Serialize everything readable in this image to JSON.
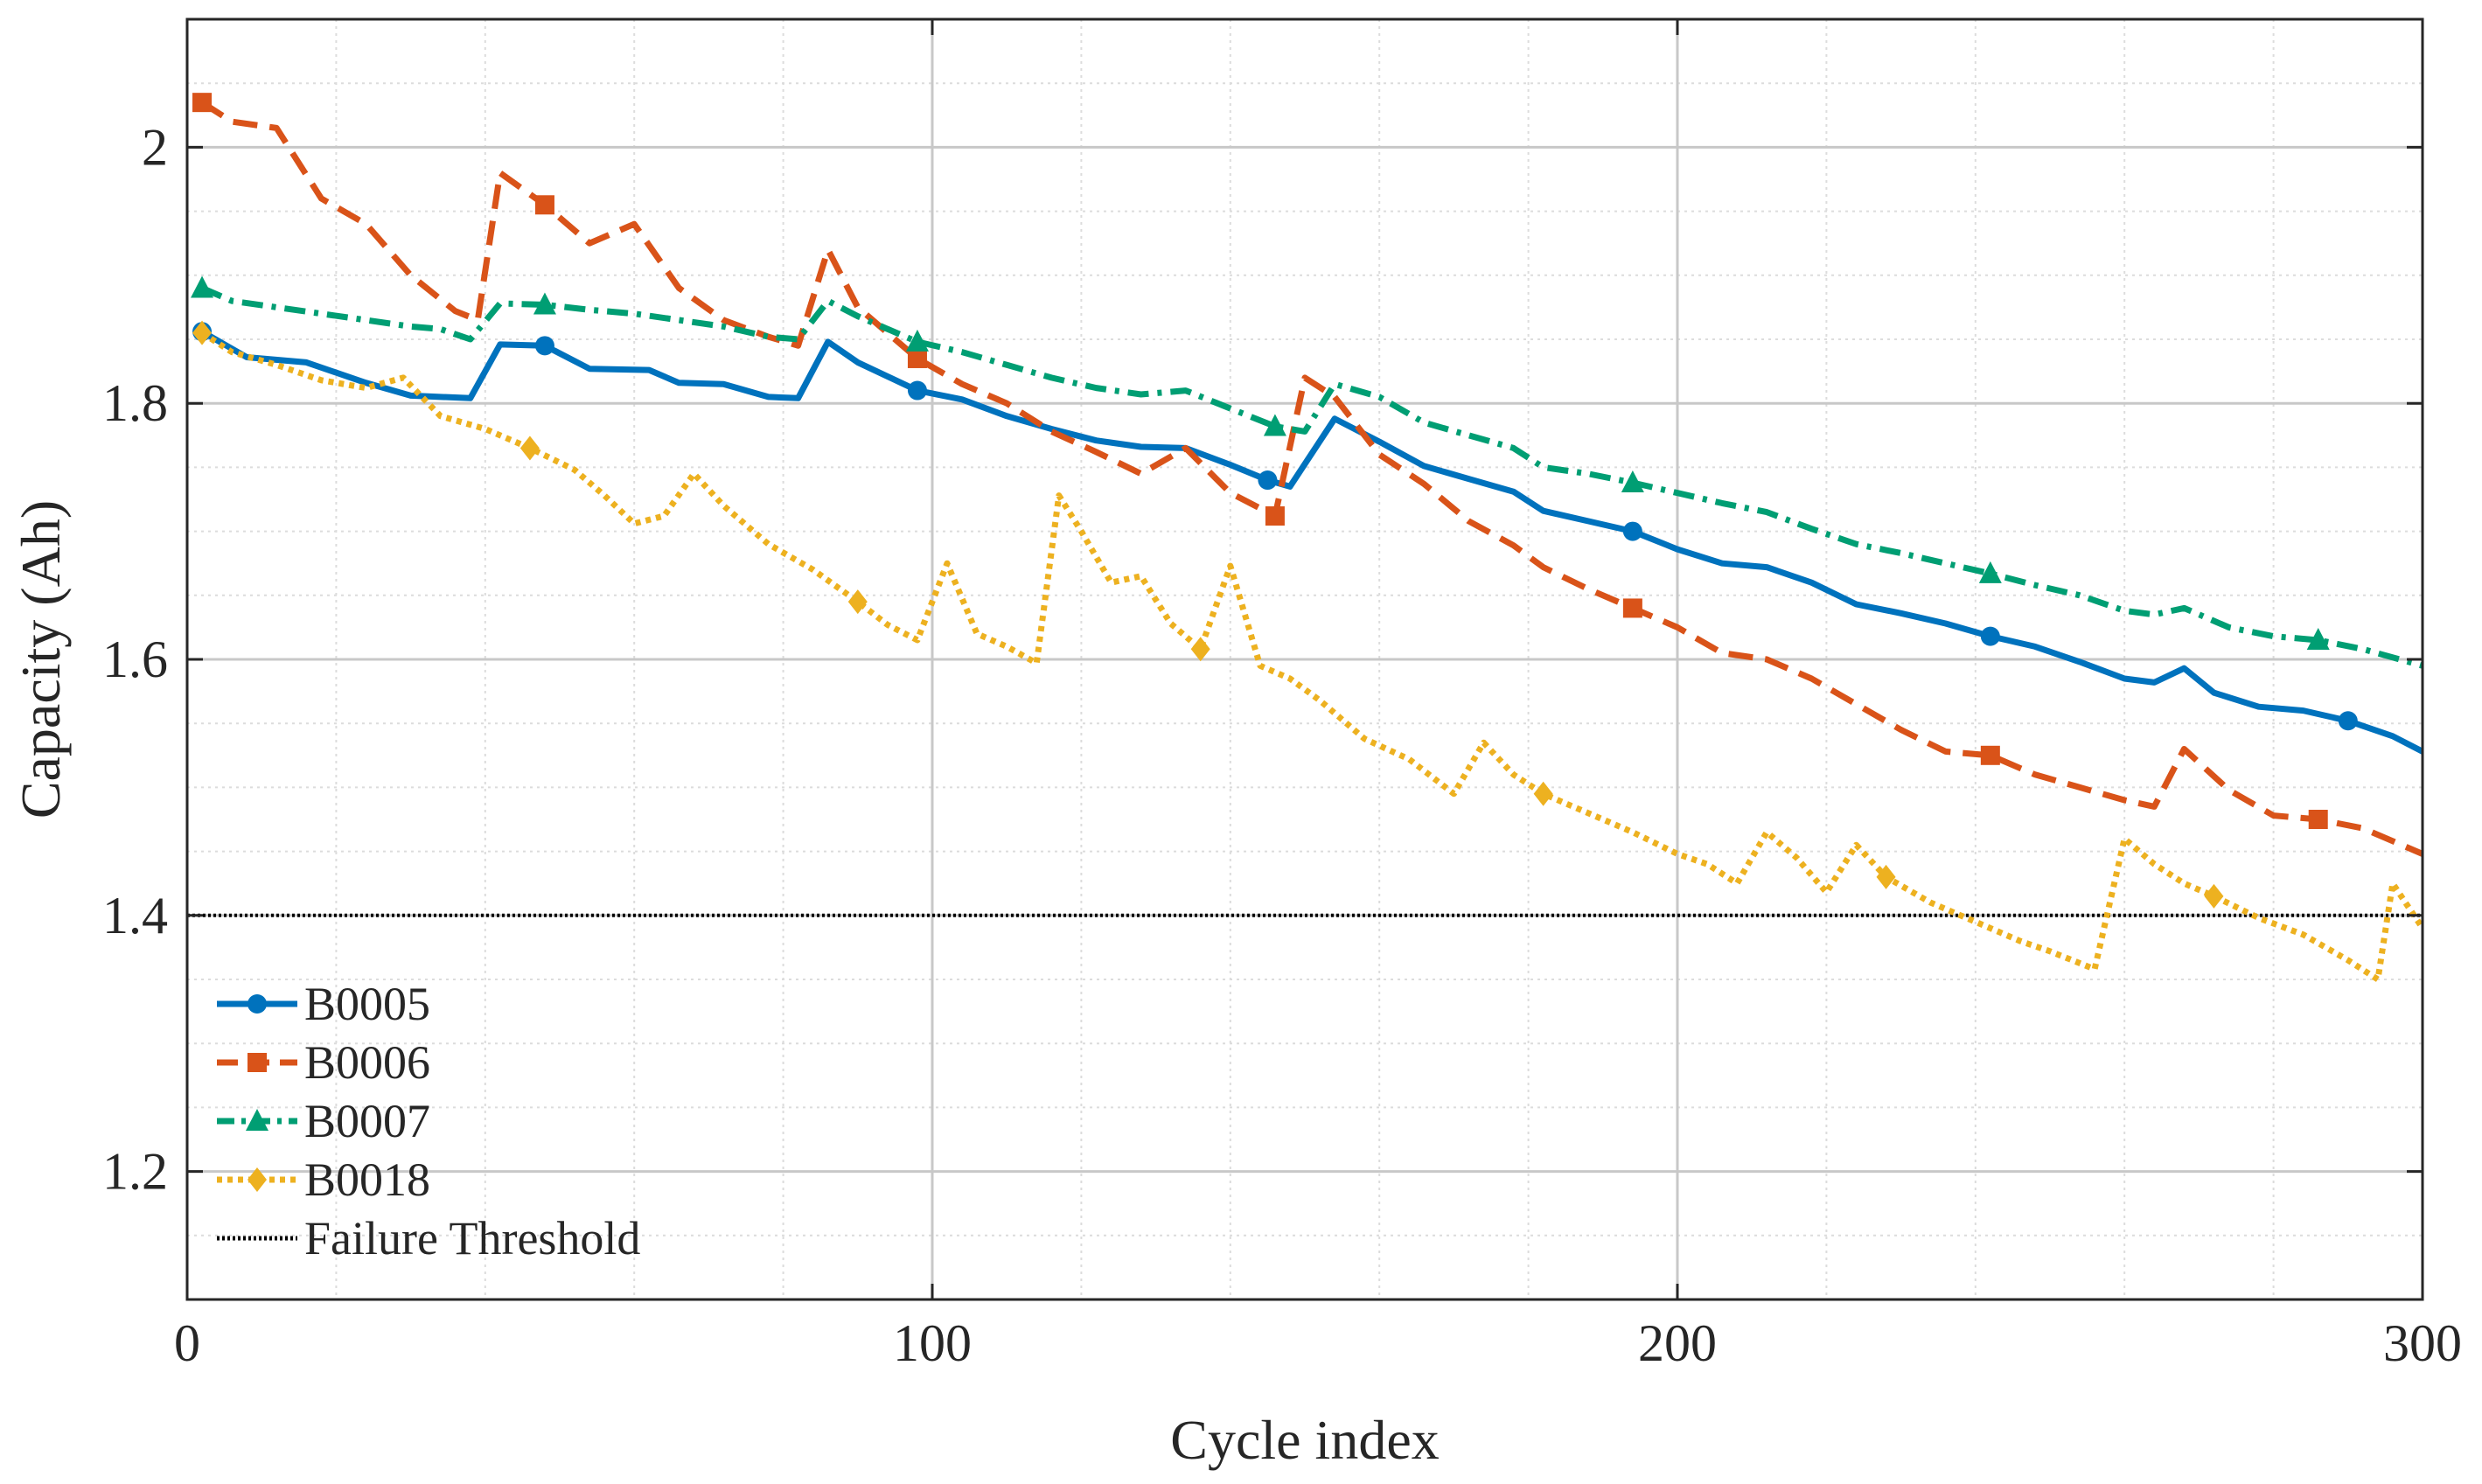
{
  "chart_data": {
    "type": "line",
    "title": "",
    "xlabel": "Cycle index",
    "ylabel": "Capacity (Ah)",
    "xlim": [
      0,
      300
    ],
    "ylim": [
      1.1,
      2.1
    ],
    "xticks": [
      0,
      100,
      200,
      300
    ],
    "xtick_labels": [
      "0",
      "100",
      "200",
      "300"
    ],
    "yticks": [
      1.2,
      1.4,
      1.6,
      1.8,
      2.0
    ],
    "ytick_labels": [
      "1.2",
      "1.4",
      "1.6",
      "1.8",
      "2"
    ],
    "grid": true,
    "legend_position": "bottom-left",
    "threshold": {
      "name": "Failure Threshold",
      "value": 1.4,
      "color": "#000000"
    },
    "series": [
      {
        "name": "B0005",
        "color": "#0072BD",
        "style": "solid",
        "marker": "circle",
        "marker_every": 20,
        "x": [
          2,
          8,
          16,
          24,
          30,
          38,
          42,
          48,
          54,
          62,
          66,
          72,
          78,
          82,
          86,
          90,
          98,
          104,
          110,
          116,
          122,
          128,
          134,
          140,
          145,
          148,
          154,
          160,
          166,
          172,
          178,
          182,
          188,
          194,
          200,
          206,
          212,
          218,
          224,
          230,
          236,
          242,
          248,
          254,
          260,
          264,
          268,
          272,
          278,
          284,
          290,
          296,
          300
        ],
        "y": [
          1.856,
          1.836,
          1.832,
          1.816,
          1.806,
          1.804,
          1.846,
          1.845,
          1.827,
          1.826,
          1.816,
          1.815,
          1.805,
          1.804,
          1.848,
          1.832,
          1.81,
          1.803,
          1.79,
          1.78,
          1.771,
          1.766,
          1.765,
          1.752,
          1.74,
          1.735,
          1.788,
          1.77,
          1.751,
          1.741,
          1.731,
          1.716,
          1.708,
          1.7,
          1.686,
          1.675,
          1.672,
          1.66,
          1.643,
          1.636,
          1.628,
          1.618,
          1.61,
          1.598,
          1.585,
          1.582,
          1.593,
          1.574,
          1.563,
          1.56,
          1.552,
          1.54,
          1.528
        ]
      },
      {
        "name": "B0006",
        "color": "#D95319",
        "style": "dashed",
        "marker": "square",
        "marker_every": 20,
        "x": [
          2,
          6,
          12,
          18,
          24,
          30,
          36,
          39,
          42,
          48,
          54,
          60,
          66,
          72,
          78,
          82,
          86,
          90,
          98,
          104,
          110,
          116,
          122,
          128,
          134,
          140,
          146,
          150,
          154,
          160,
          166,
          172,
          178,
          182,
          188,
          194,
          200,
          206,
          212,
          218,
          224,
          230,
          236,
          242,
          248,
          254,
          260,
          264,
          268,
          274,
          280,
          286,
          292,
          300
        ],
        "y": [
          2.035,
          2.02,
          2.015,
          1.96,
          1.94,
          1.9,
          1.872,
          1.865,
          1.98,
          1.955,
          1.925,
          1.94,
          1.89,
          1.865,
          1.852,
          1.845,
          1.92,
          1.875,
          1.835,
          1.815,
          1.8,
          1.778,
          1.762,
          1.745,
          1.765,
          1.73,
          1.712,
          1.82,
          1.805,
          1.76,
          1.737,
          1.708,
          1.689,
          1.672,
          1.655,
          1.64,
          1.625,
          1.605,
          1.6,
          1.585,
          1.565,
          1.545,
          1.528,
          1.525,
          1.51,
          1.5,
          1.49,
          1.485,
          1.53,
          1.498,
          1.478,
          1.475,
          1.468,
          1.448
        ]
      },
      {
        "name": "B0007",
        "color": "#009E73",
        "style": "dashdot",
        "marker": "triangle",
        "marker_every": 20,
        "x": [
          2,
          6,
          12,
          18,
          24,
          30,
          34,
          38,
          42,
          48,
          54,
          60,
          66,
          72,
          78,
          82,
          86,
          90,
          98,
          104,
          110,
          116,
          122,
          128,
          134,
          140,
          146,
          150,
          154,
          160,
          166,
          172,
          178,
          182,
          188,
          194,
          200,
          206,
          212,
          218,
          224,
          230,
          236,
          242,
          248,
          254,
          260,
          264,
          268,
          274,
          280,
          286,
          292,
          300
        ],
        "y": [
          1.89,
          1.88,
          1.875,
          1.87,
          1.865,
          1.86,
          1.858,
          1.85,
          1.878,
          1.877,
          1.873,
          1.87,
          1.865,
          1.86,
          1.852,
          1.85,
          1.88,
          1.868,
          1.848,
          1.84,
          1.83,
          1.82,
          1.812,
          1.807,
          1.81,
          1.796,
          1.782,
          1.778,
          1.815,
          1.805,
          1.785,
          1.775,
          1.765,
          1.75,
          1.745,
          1.738,
          1.73,
          1.722,
          1.715,
          1.702,
          1.69,
          1.683,
          1.675,
          1.667,
          1.658,
          1.65,
          1.638,
          1.635,
          1.64,
          1.625,
          1.618,
          1.615,
          1.608,
          1.595
        ]
      },
      {
        "name": "B0018",
        "color": "#EDB120",
        "style": "dotted",
        "marker": "diamond",
        "marker_every": 20,
        "x": [
          2,
          6,
          12,
          18,
          24,
          29,
          34,
          40,
          46,
          52,
          56,
          60,
          64,
          68,
          72,
          78,
          84,
          90,
          94,
          98,
          102,
          106,
          110,
          114,
          117,
          120,
          124,
          128,
          132,
          136,
          140,
          144,
          148,
          152,
          158,
          164,
          170,
          174,
          178,
          182,
          188,
          194,
          200,
          204,
          208,
          212,
          216,
          220,
          224,
          228,
          234,
          240,
          246,
          250,
          256,
          260,
          264,
          268,
          272,
          278,
          284,
          290,
          294,
          296,
          300
        ],
        "y": [
          1.855,
          1.84,
          1.83,
          1.818,
          1.812,
          1.82,
          1.79,
          1.78,
          1.765,
          1.748,
          1.728,
          1.706,
          1.712,
          1.745,
          1.72,
          1.69,
          1.67,
          1.645,
          1.627,
          1.615,
          1.675,
          1.62,
          1.61,
          1.597,
          1.728,
          1.7,
          1.66,
          1.665,
          1.628,
          1.608,
          1.673,
          1.595,
          1.585,
          1.568,
          1.538,
          1.522,
          1.495,
          1.535,
          1.51,
          1.495,
          1.48,
          1.465,
          1.448,
          1.44,
          1.425,
          1.465,
          1.445,
          1.418,
          1.455,
          1.43,
          1.41,
          1.395,
          1.38,
          1.372,
          1.358,
          1.46,
          1.44,
          1.425,
          1.415,
          1.398,
          1.385,
          1.365,
          1.35,
          1.425,
          1.39
        ]
      }
    ]
  }
}
